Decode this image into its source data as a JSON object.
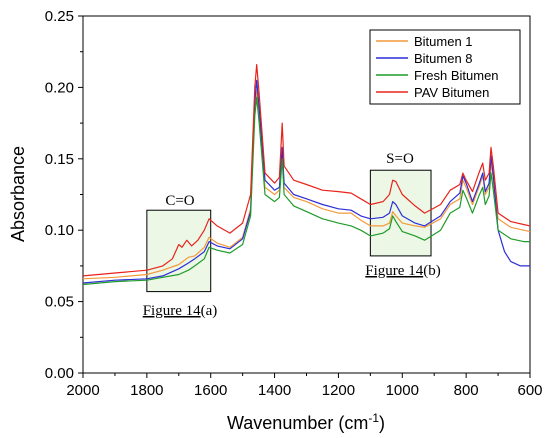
{
  "chart_data": {
    "type": "line",
    "xlabel": "Wavenumber (cm",
    "xlabel_sup": "-1",
    "xlabel_end": ")",
    "ylabel": "Absorbance",
    "xlim": [
      2000,
      600
    ],
    "ylim": [
      0.0,
      0.25
    ],
    "xticks": [
      "2000",
      "1800",
      "1600",
      "1400",
      "1200",
      "1000",
      "800",
      "600"
    ],
    "yticks": [
      "0.00",
      "0.05",
      "0.10",
      "0.15",
      "0.20",
      "0.25"
    ],
    "legend_position": "top-right",
    "series": [
      {
        "name": "Bitumen 1",
        "color": "#f39a3c",
        "points": [
          [
            2000,
            0.066
          ],
          [
            1900,
            0.067
          ],
          [
            1800,
            0.069
          ],
          [
            1750,
            0.072
          ],
          [
            1700,
            0.076
          ],
          [
            1670,
            0.081
          ],
          [
            1650,
            0.082
          ],
          [
            1620,
            0.088
          ],
          [
            1605,
            0.095
          ],
          [
            1580,
            0.091
          ],
          [
            1540,
            0.088
          ],
          [
            1500,
            0.095
          ],
          [
            1475,
            0.115
          ],
          [
            1462,
            0.185
          ],
          [
            1456,
            0.198
          ],
          [
            1448,
            0.18
          ],
          [
            1430,
            0.13
          ],
          [
            1400,
            0.125
          ],
          [
            1385,
            0.128
          ],
          [
            1376,
            0.155
          ],
          [
            1370,
            0.13
          ],
          [
            1340,
            0.123
          ],
          [
            1300,
            0.12
          ],
          [
            1250,
            0.115
          ],
          [
            1200,
            0.112
          ],
          [
            1160,
            0.112
          ],
          [
            1130,
            0.107
          ],
          [
            1100,
            0.103
          ],
          [
            1060,
            0.103
          ],
          [
            1040,
            0.105
          ],
          [
            1030,
            0.113
          ],
          [
            1020,
            0.11
          ],
          [
            1000,
            0.105
          ],
          [
            960,
            0.103
          ],
          [
            930,
            0.102
          ],
          [
            880,
            0.108
          ],
          [
            850,
            0.118
          ],
          [
            820,
            0.122
          ],
          [
            810,
            0.135
          ],
          [
            800,
            0.13
          ],
          [
            780,
            0.118
          ],
          [
            760,
            0.13
          ],
          [
            748,
            0.138
          ],
          [
            740,
            0.125
          ],
          [
            728,
            0.13
          ],
          [
            722,
            0.148
          ],
          [
            715,
            0.135
          ],
          [
            700,
            0.108
          ],
          [
            660,
            0.102
          ],
          [
            620,
            0.1
          ],
          [
            600,
            0.099
          ]
        ]
      },
      {
        "name": "Bitumen 8",
        "color": "#2d2fd6",
        "points": [
          [
            2000,
            0.063
          ],
          [
            1900,
            0.065
          ],
          [
            1800,
            0.066
          ],
          [
            1750,
            0.068
          ],
          [
            1700,
            0.073
          ],
          [
            1670,
            0.077
          ],
          [
            1650,
            0.08
          ],
          [
            1620,
            0.085
          ],
          [
            1605,
            0.092
          ],
          [
            1580,
            0.089
          ],
          [
            1540,
            0.087
          ],
          [
            1500,
            0.094
          ],
          [
            1475,
            0.113
          ],
          [
            1462,
            0.19
          ],
          [
            1456,
            0.205
          ],
          [
            1448,
            0.185
          ],
          [
            1430,
            0.135
          ],
          [
            1400,
            0.128
          ],
          [
            1385,
            0.13
          ],
          [
            1376,
            0.158
          ],
          [
            1370,
            0.133
          ],
          [
            1340,
            0.125
          ],
          [
            1300,
            0.122
          ],
          [
            1250,
            0.118
          ],
          [
            1200,
            0.115
          ],
          [
            1160,
            0.114
          ],
          [
            1130,
            0.11
          ],
          [
            1100,
            0.108
          ],
          [
            1060,
            0.109
          ],
          [
            1040,
            0.112
          ],
          [
            1030,
            0.12
          ],
          [
            1020,
            0.118
          ],
          [
            1000,
            0.11
          ],
          [
            960,
            0.105
          ],
          [
            930,
            0.103
          ],
          [
            880,
            0.11
          ],
          [
            850,
            0.12
          ],
          [
            820,
            0.126
          ],
          [
            810,
            0.138
          ],
          [
            800,
            0.133
          ],
          [
            780,
            0.12
          ],
          [
            760,
            0.132
          ],
          [
            748,
            0.14
          ],
          [
            740,
            0.127
          ],
          [
            728,
            0.133
          ],
          [
            722,
            0.152
          ],
          [
            715,
            0.138
          ],
          [
            700,
            0.1
          ],
          [
            680,
            0.085
          ],
          [
            660,
            0.078
          ],
          [
            630,
            0.075
          ],
          [
            600,
            0.075
          ]
        ]
      },
      {
        "name": "Fresh Bitumen",
        "color": "#1f9b2a",
        "points": [
          [
            2000,
            0.062
          ],
          [
            1900,
            0.064
          ],
          [
            1800,
            0.065
          ],
          [
            1750,
            0.067
          ],
          [
            1700,
            0.069
          ],
          [
            1670,
            0.072
          ],
          [
            1650,
            0.075
          ],
          [
            1620,
            0.08
          ],
          [
            1605,
            0.088
          ],
          [
            1580,
            0.086
          ],
          [
            1540,
            0.084
          ],
          [
            1500,
            0.09
          ],
          [
            1475,
            0.11
          ],
          [
            1462,
            0.18
          ],
          [
            1456,
            0.193
          ],
          [
            1448,
            0.175
          ],
          [
            1430,
            0.125
          ],
          [
            1400,
            0.12
          ],
          [
            1385,
            0.123
          ],
          [
            1376,
            0.15
          ],
          [
            1370,
            0.125
          ],
          [
            1340,
            0.117
          ],
          [
            1300,
            0.113
          ],
          [
            1250,
            0.108
          ],
          [
            1200,
            0.105
          ],
          [
            1160,
            0.103
          ],
          [
            1130,
            0.1
          ],
          [
            1100,
            0.096
          ],
          [
            1060,
            0.098
          ],
          [
            1040,
            0.101
          ],
          [
            1030,
            0.11
          ],
          [
            1020,
            0.106
          ],
          [
            1000,
            0.099
          ],
          [
            960,
            0.096
          ],
          [
            930,
            0.093
          ],
          [
            880,
            0.1
          ],
          [
            850,
            0.112
          ],
          [
            820,
            0.116
          ],
          [
            810,
            0.128
          ],
          [
            800,
            0.123
          ],
          [
            780,
            0.112
          ],
          [
            760,
            0.124
          ],
          [
            748,
            0.13
          ],
          [
            740,
            0.118
          ],
          [
            728,
            0.124
          ],
          [
            722,
            0.14
          ],
          [
            715,
            0.128
          ],
          [
            700,
            0.1
          ],
          [
            660,
            0.094
          ],
          [
            620,
            0.092
          ],
          [
            600,
            0.092
          ]
        ]
      },
      {
        "name": "PAV Bitumen",
        "color": "#e8231b",
        "points": [
          [
            2000,
            0.068
          ],
          [
            1900,
            0.07
          ],
          [
            1800,
            0.072
          ],
          [
            1750,
            0.075
          ],
          [
            1720,
            0.08
          ],
          [
            1700,
            0.09
          ],
          [
            1690,
            0.088
          ],
          [
            1675,
            0.093
          ],
          [
            1660,
            0.089
          ],
          [
            1640,
            0.093
          ],
          [
            1620,
            0.1
          ],
          [
            1605,
            0.108
          ],
          [
            1580,
            0.103
          ],
          [
            1540,
            0.098
          ],
          [
            1500,
            0.105
          ],
          [
            1475,
            0.125
          ],
          [
            1462,
            0.2
          ],
          [
            1456,
            0.216
          ],
          [
            1448,
            0.195
          ],
          [
            1430,
            0.14
          ],
          [
            1400,
            0.133
          ],
          [
            1385,
            0.137
          ],
          [
            1376,
            0.175
          ],
          [
            1370,
            0.145
          ],
          [
            1340,
            0.135
          ],
          [
            1300,
            0.132
          ],
          [
            1250,
            0.128
          ],
          [
            1200,
            0.127
          ],
          [
            1160,
            0.126
          ],
          [
            1130,
            0.122
          ],
          [
            1100,
            0.118
          ],
          [
            1060,
            0.12
          ],
          [
            1040,
            0.125
          ],
          [
            1030,
            0.135
          ],
          [
            1020,
            0.134
          ],
          [
            1000,
            0.125
          ],
          [
            960,
            0.117
          ],
          [
            930,
            0.112
          ],
          [
            880,
            0.118
          ],
          [
            850,
            0.128
          ],
          [
            820,
            0.132
          ],
          [
            810,
            0.14
          ],
          [
            800,
            0.135
          ],
          [
            780,
            0.127
          ],
          [
            760,
            0.14
          ],
          [
            748,
            0.147
          ],
          [
            740,
            0.135
          ],
          [
            728,
            0.14
          ],
          [
            722,
            0.158
          ],
          [
            715,
            0.145
          ],
          [
            700,
            0.112
          ],
          [
            660,
            0.106
          ],
          [
            620,
            0.104
          ],
          [
            600,
            0.103
          ]
        ]
      }
    ],
    "annotations": {
      "box_a": {
        "label": "C=O",
        "caption_link": "Figure 14",
        "caption_suffix": "(a)",
        "x_range": [
          1800,
          1600
        ],
        "y_range": [
          0.057,
          0.114
        ]
      },
      "box_b": {
        "label": "S=O",
        "caption_link": "Figure 14",
        "caption_suffix": "(b)",
        "x_range": [
          1100,
          910
        ],
        "y_range": [
          0.082,
          0.142
        ]
      }
    }
  }
}
